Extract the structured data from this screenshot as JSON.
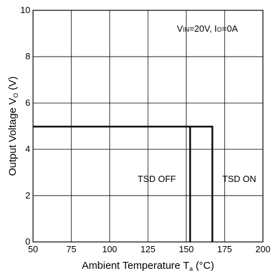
{
  "chart_data": {
    "type": "line",
    "xlabel": {
      "main": "Ambient Temperature T",
      "sub": "a",
      "unit": " (°C)"
    },
    "ylabel": {
      "main": "Output Voltage V",
      "sub": "O",
      "unit": " (V)"
    },
    "xlim": [
      50,
      200
    ],
    "ylim": [
      0,
      10
    ],
    "x_ticks": [
      50,
      75,
      100,
      125,
      150,
      175,
      200
    ],
    "y_ticks": [
      0,
      2,
      4,
      6,
      8,
      10
    ],
    "x_tick_labels": [
      "50",
      "75",
      "100",
      "125",
      "150",
      "175",
      "200"
    ],
    "y_tick_labels": [
      "0",
      "2",
      "4",
      "6",
      "8",
      "10"
    ],
    "grid": true,
    "condition": {
      "v": "V",
      "v_sub": "IN",
      "v_val": "=20V, ",
      "i": "I",
      "i_sub": "O",
      "i_val": "=0A"
    },
    "series": [
      {
        "x": [
          50,
          152.5,
          152.5
        ],
        "y": [
          4.98,
          4.98,
          0
        ]
      },
      {
        "x": [
          152.5,
          167,
          167
        ],
        "y": [
          4.98,
          4.98,
          0
        ]
      }
    ],
    "annotations": {
      "tsd_off": "TSD OFF",
      "tsd_on": "TSD ON"
    }
  }
}
